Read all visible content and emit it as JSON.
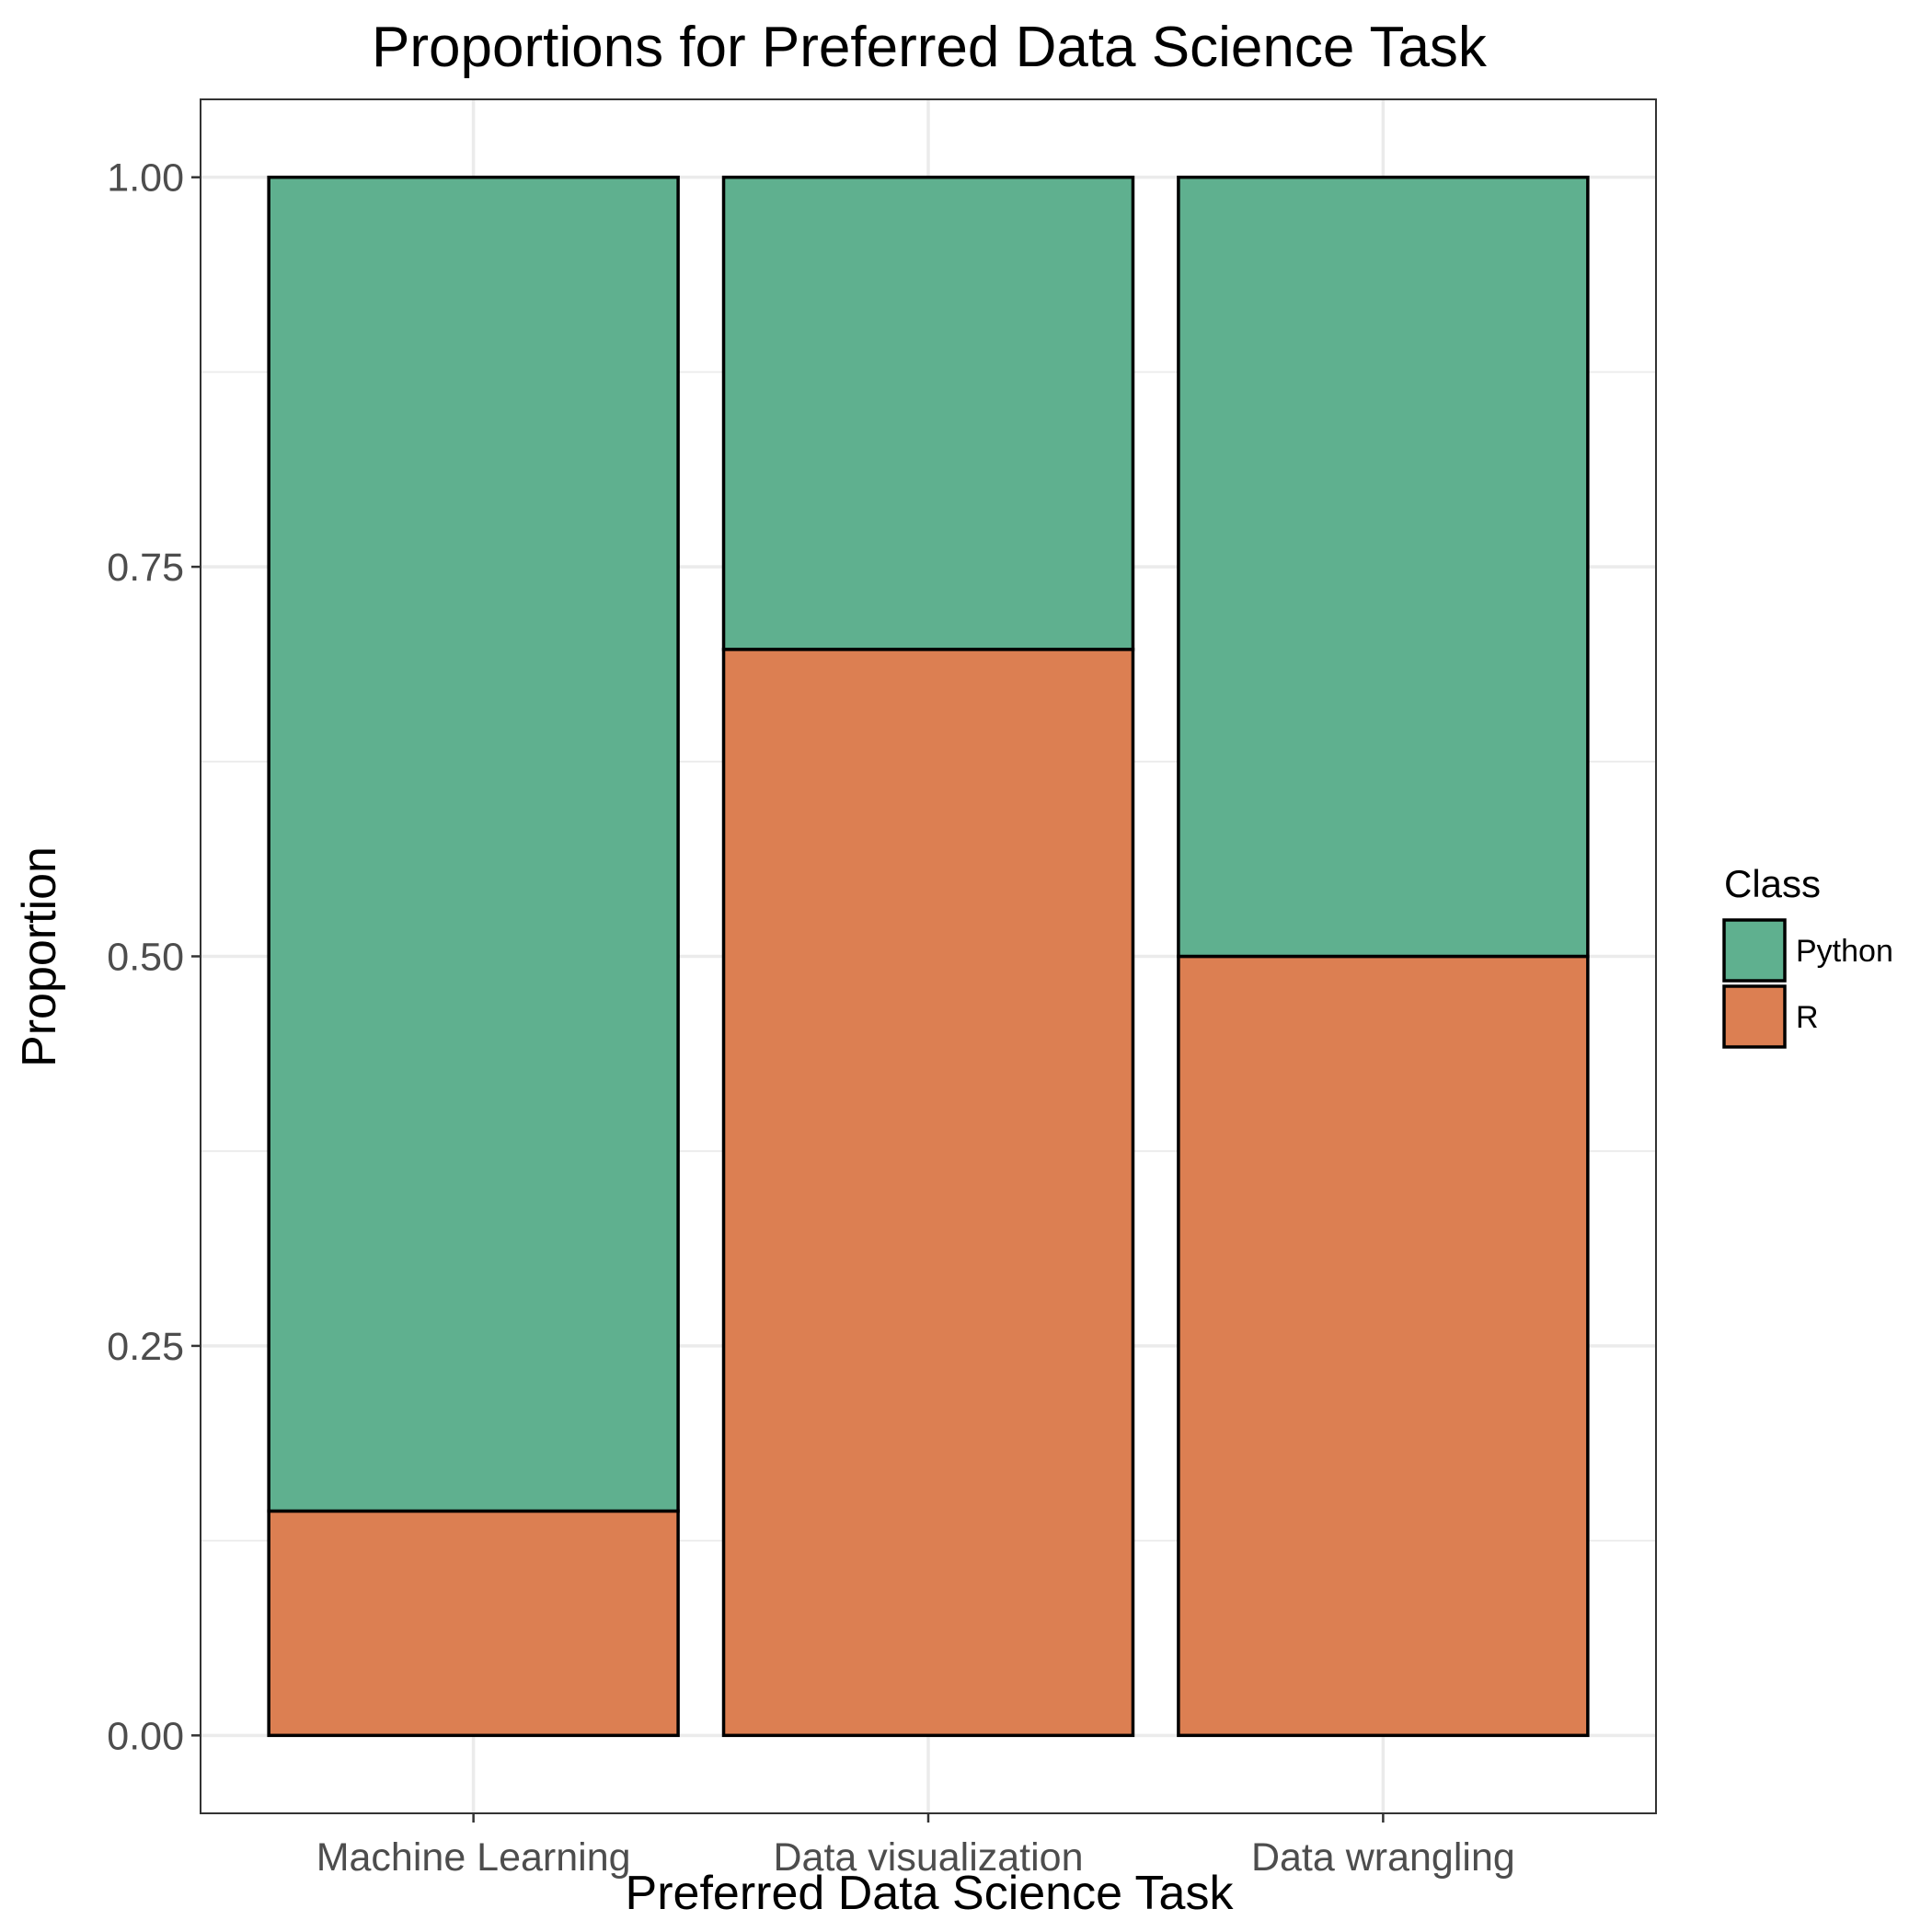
{
  "chart_data": {
    "type": "bar",
    "stacked": true,
    "title": "Proportions for Preferred Data Science Task",
    "xlabel": "Preferred Data Science Task",
    "ylabel": "Proportion",
    "categories": [
      "Machine Learning",
      "Data visualization",
      "Data wrangling"
    ],
    "series": [
      {
        "name": "Python",
        "color": "#5fb08f",
        "values": [
          0.856,
          0.303,
          0.5
        ]
      },
      {
        "name": "R",
        "color": "#dc7f52",
        "values": [
          0.144,
          0.697,
          0.5
        ]
      }
    ],
    "ylim": [
      -0.05,
      1.05
    ],
    "yticks": [
      0.0,
      0.25,
      0.5,
      0.75,
      1.0
    ],
    "ytick_labels": [
      "0.00",
      "0.25",
      "0.50",
      "0.75",
      "1.00"
    ],
    "grid": true,
    "legend": {
      "title": "Class",
      "position": "right"
    }
  }
}
